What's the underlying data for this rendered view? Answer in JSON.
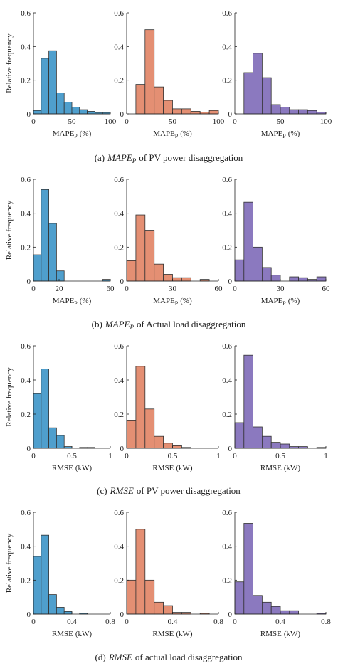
{
  "chart_data": [
    {
      "type": "histogram",
      "ylabel": "Relative frequency",
      "xlabel": {
        "text": "MAPE",
        "sub": "P",
        "unit": "(%)"
      },
      "color": "#4f9fcd",
      "bins": [
        0,
        10,
        20,
        30,
        40,
        50,
        60,
        70,
        80,
        90,
        100
      ],
      "values": [
        0.02,
        0.33,
        0.375,
        0.125,
        0.07,
        0.04,
        0.025,
        0.015,
        0.008,
        0.008
      ],
      "xlim": [
        0,
        100
      ],
      "xticks": [
        0,
        50,
        100
      ],
      "ylim": [
        0,
        0.6
      ],
      "yticks": [
        0,
        0.2,
        0.4,
        0.6
      ]
    },
    {
      "type": "histogram",
      "xlabel": {
        "text": "MAPE",
        "sub": "P",
        "unit": "(%)"
      },
      "color": "#e48f73",
      "bins": [
        0,
        10,
        20,
        30,
        40,
        50,
        60,
        70,
        80,
        90,
        100
      ],
      "values": [
        0,
        0.175,
        0.5,
        0.16,
        0.08,
        0.03,
        0.03,
        0.015,
        0.01,
        0.02
      ],
      "xlim": [
        0,
        100
      ],
      "xticks": [
        0,
        50,
        100
      ],
      "ylim": [
        0,
        0.6
      ],
      "yticks": [
        0,
        0.2,
        0.4,
        0.6
      ]
    },
    {
      "type": "histogram",
      "xlabel": {
        "text": "MAPE",
        "sub": "P",
        "unit": "(%)"
      },
      "color": "#8b79bf",
      "bins": [
        0,
        10,
        20,
        30,
        40,
        50,
        60,
        70,
        80,
        90,
        100
      ],
      "values": [
        0,
        0.245,
        0.36,
        0.215,
        0.055,
        0.04,
        0.025,
        0.025,
        0.02,
        0.01
      ],
      "xlim": [
        0,
        100
      ],
      "xticks": [
        0,
        50,
        100
      ],
      "ylim": [
        0,
        0.6
      ],
      "yticks": [
        0,
        0.2,
        0.4,
        0.6
      ]
    },
    {
      "type": "histogram",
      "ylabel": "Relative frequency",
      "xlabel": {
        "text": "MAPE",
        "sub": "P",
        "unit": "(%)"
      },
      "color": "#4f9fcd",
      "bins": [
        0,
        6,
        12,
        18,
        24,
        30,
        36,
        42,
        48,
        54,
        60
      ],
      "values": [
        0.155,
        0.54,
        0.34,
        0.06,
        0,
        0,
        0,
        0,
        0,
        0.01
      ],
      "xlim": [
        0,
        60
      ],
      "xticks": [
        0,
        20,
        60
      ],
      "ylim": [
        0,
        0.6
      ],
      "yticks": [
        0,
        0.2,
        0.4,
        0.6
      ]
    },
    {
      "type": "histogram",
      "xlabel": {
        "text": "MAPE",
        "sub": "P",
        "unit": "(%)"
      },
      "color": "#e48f73",
      "bins": [
        0,
        6,
        12,
        18,
        24,
        30,
        36,
        42,
        48,
        54,
        60
      ],
      "values": [
        0.12,
        0.39,
        0.3,
        0.1,
        0.04,
        0.02,
        0.02,
        0,
        0.01,
        0
      ],
      "xlim": [
        0,
        60
      ],
      "xticks": [
        0,
        30,
        60
      ],
      "ylim": [
        0,
        0.6
      ],
      "yticks": [
        0,
        0.2,
        0.4,
        0.6
      ]
    },
    {
      "type": "histogram",
      "xlabel": {
        "text": "MAPE",
        "sub": "P",
        "unit": "(%)"
      },
      "color": "#8b79bf",
      "bins": [
        0,
        6,
        12,
        18,
        24,
        30,
        36,
        42,
        48,
        54,
        60
      ],
      "values": [
        0.125,
        0.465,
        0.2,
        0.08,
        0.035,
        0,
        0.025,
        0.02,
        0.01,
        0.025
      ],
      "xlim": [
        0,
        60
      ],
      "xticks": [
        0,
        30,
        60
      ],
      "ylim": [
        0,
        0.6
      ],
      "yticks": [
        0,
        0.2,
        0.4,
        0.6
      ]
    },
    {
      "type": "histogram",
      "ylabel": "Relative frequency",
      "xlabel": {
        "text": "RMSE",
        "unit": "(kW)"
      },
      "color": "#4f9fcd",
      "bins": [
        0,
        0.1,
        0.2,
        0.3,
        0.4,
        0.5,
        0.6,
        0.7,
        0.8,
        0.9,
        1
      ],
      "values": [
        0.32,
        0.465,
        0.12,
        0.075,
        0.01,
        0,
        0.005,
        0.005,
        0,
        0
      ],
      "xlim": [
        0,
        1
      ],
      "xticks": [
        0,
        0.5,
        1
      ],
      "ylim": [
        0,
        0.6
      ],
      "yticks": [
        0,
        0.2,
        0.4,
        0.6
      ]
    },
    {
      "type": "histogram",
      "xlabel": {
        "text": "RMSE",
        "unit": "(kW)"
      },
      "color": "#e48f73",
      "bins": [
        0,
        0.1,
        0.2,
        0.3,
        0.4,
        0.5,
        0.6,
        0.7,
        0.8,
        0.9,
        1
      ],
      "values": [
        0.165,
        0.48,
        0.23,
        0.07,
        0.03,
        0.015,
        0.005,
        0,
        0,
        0
      ],
      "xlim": [
        0,
        1
      ],
      "xticks": [
        0,
        0.5,
        1
      ],
      "ylim": [
        0,
        0.6
      ],
      "yticks": [
        0,
        0.2,
        0.4,
        0.6
      ]
    },
    {
      "type": "histogram",
      "xlabel": {
        "text": "RMSE",
        "unit": "(kW)"
      },
      "color": "#8b79bf",
      "bins": [
        0,
        0.1,
        0.2,
        0.3,
        0.4,
        0.5,
        0.6,
        0.7,
        0.8,
        0.9,
        1
      ],
      "values": [
        0.15,
        0.545,
        0.125,
        0.07,
        0.035,
        0.025,
        0.01,
        0.01,
        0,
        0.005
      ],
      "xlim": [
        0,
        1
      ],
      "xticks": [
        0,
        0.5,
        1
      ],
      "ylim": [
        0,
        0.6
      ],
      "yticks": [
        0,
        0.2,
        0.4,
        0.6
      ]
    },
    {
      "type": "histogram",
      "ylabel": "Relative frequency",
      "xlabel": {
        "text": "RMSE",
        "unit": "(kW)"
      },
      "color": "#4f9fcd",
      "bins": [
        0,
        0.08,
        0.16,
        0.24,
        0.32,
        0.4,
        0.48,
        0.56,
        0.64,
        0.72,
        0.8
      ],
      "values": [
        0.34,
        0.465,
        0.115,
        0.04,
        0.015,
        0,
        0.005,
        0,
        0,
        0
      ],
      "xlim": [
        0,
        0.8
      ],
      "xticks": [
        0,
        0.4,
        0.8
      ],
      "ylim": [
        0,
        0.6
      ],
      "yticks": [
        0,
        0.2,
        0.4,
        0.6
      ]
    },
    {
      "type": "histogram",
      "xlabel": {
        "text": "RMSE",
        "unit": "(kW)"
      },
      "color": "#e48f73",
      "bins": [
        0,
        0.08,
        0.16,
        0.24,
        0.32,
        0.4,
        0.48,
        0.56,
        0.64,
        0.72,
        0.8
      ],
      "values": [
        0.2,
        0.5,
        0.2,
        0.07,
        0.05,
        0.01,
        0.01,
        0,
        0.005,
        0
      ],
      "xlim": [
        0,
        0.8
      ],
      "xticks": [
        0,
        0.4,
        0.8
      ],
      "ylim": [
        0,
        0.6
      ],
      "yticks": [
        0,
        0.2,
        0.4,
        0.6
      ]
    },
    {
      "type": "histogram",
      "xlabel": {
        "text": "RMSE",
        "unit": "(kW)"
      },
      "color": "#8b79bf",
      "bins": [
        0,
        0.08,
        0.16,
        0.24,
        0.32,
        0.4,
        0.48,
        0.56,
        0.64,
        0.72,
        0.8
      ],
      "values": [
        0.19,
        0.535,
        0.11,
        0.07,
        0.045,
        0.02,
        0.02,
        0,
        0,
        0.005
      ],
      "xlim": [
        0,
        0.8
      ],
      "xticks": [
        0,
        0.4,
        0.8
      ],
      "ylim": [
        0,
        0.6
      ],
      "yticks": [
        0,
        0.2,
        0.4,
        0.6
      ]
    }
  ],
  "captions": [
    {
      "label": "(a)",
      "metric": "MAPE",
      "sub": "P",
      "text": "of PV power disaggregation"
    },
    {
      "label": "(b)",
      "metric": "MAPE",
      "sub": "P",
      "text": "of Actual load disaggregation"
    },
    {
      "label": "(c)",
      "metric": "RMSE",
      "text": "of PV power disaggregation"
    },
    {
      "label": "(d)",
      "metric": "RMSE",
      "text": "of actual load disaggregation"
    }
  ]
}
